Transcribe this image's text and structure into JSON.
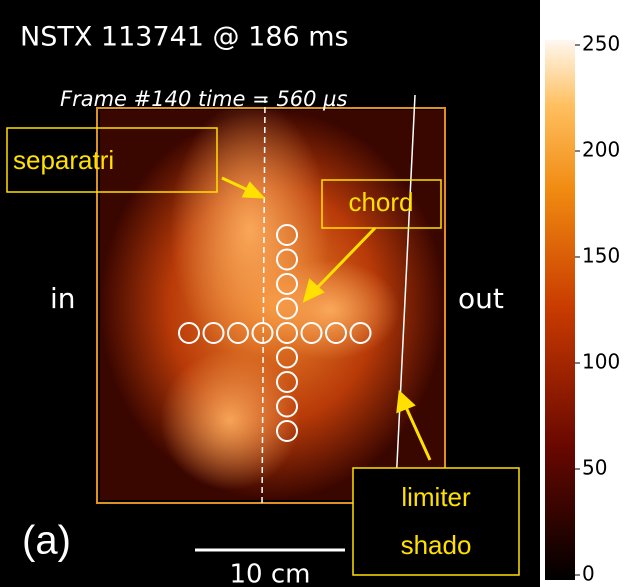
{
  "header": {
    "title": "NSTX 113741   @ 186 ms",
    "frame": "Frame #140  time =  560 µs"
  },
  "labels": {
    "inboard": "in",
    "outboard": "out",
    "panel": "(a)",
    "scale_bar": "10 cm"
  },
  "annotations": {
    "separatrix": "separatri",
    "chord": "chord",
    "limiter": [
      "limiter",
      "shado"
    ]
  },
  "colorbar": {
    "range": [
      0,
      250
    ],
    "ticks": [
      0,
      50,
      100,
      150,
      200,
      250
    ]
  }
}
